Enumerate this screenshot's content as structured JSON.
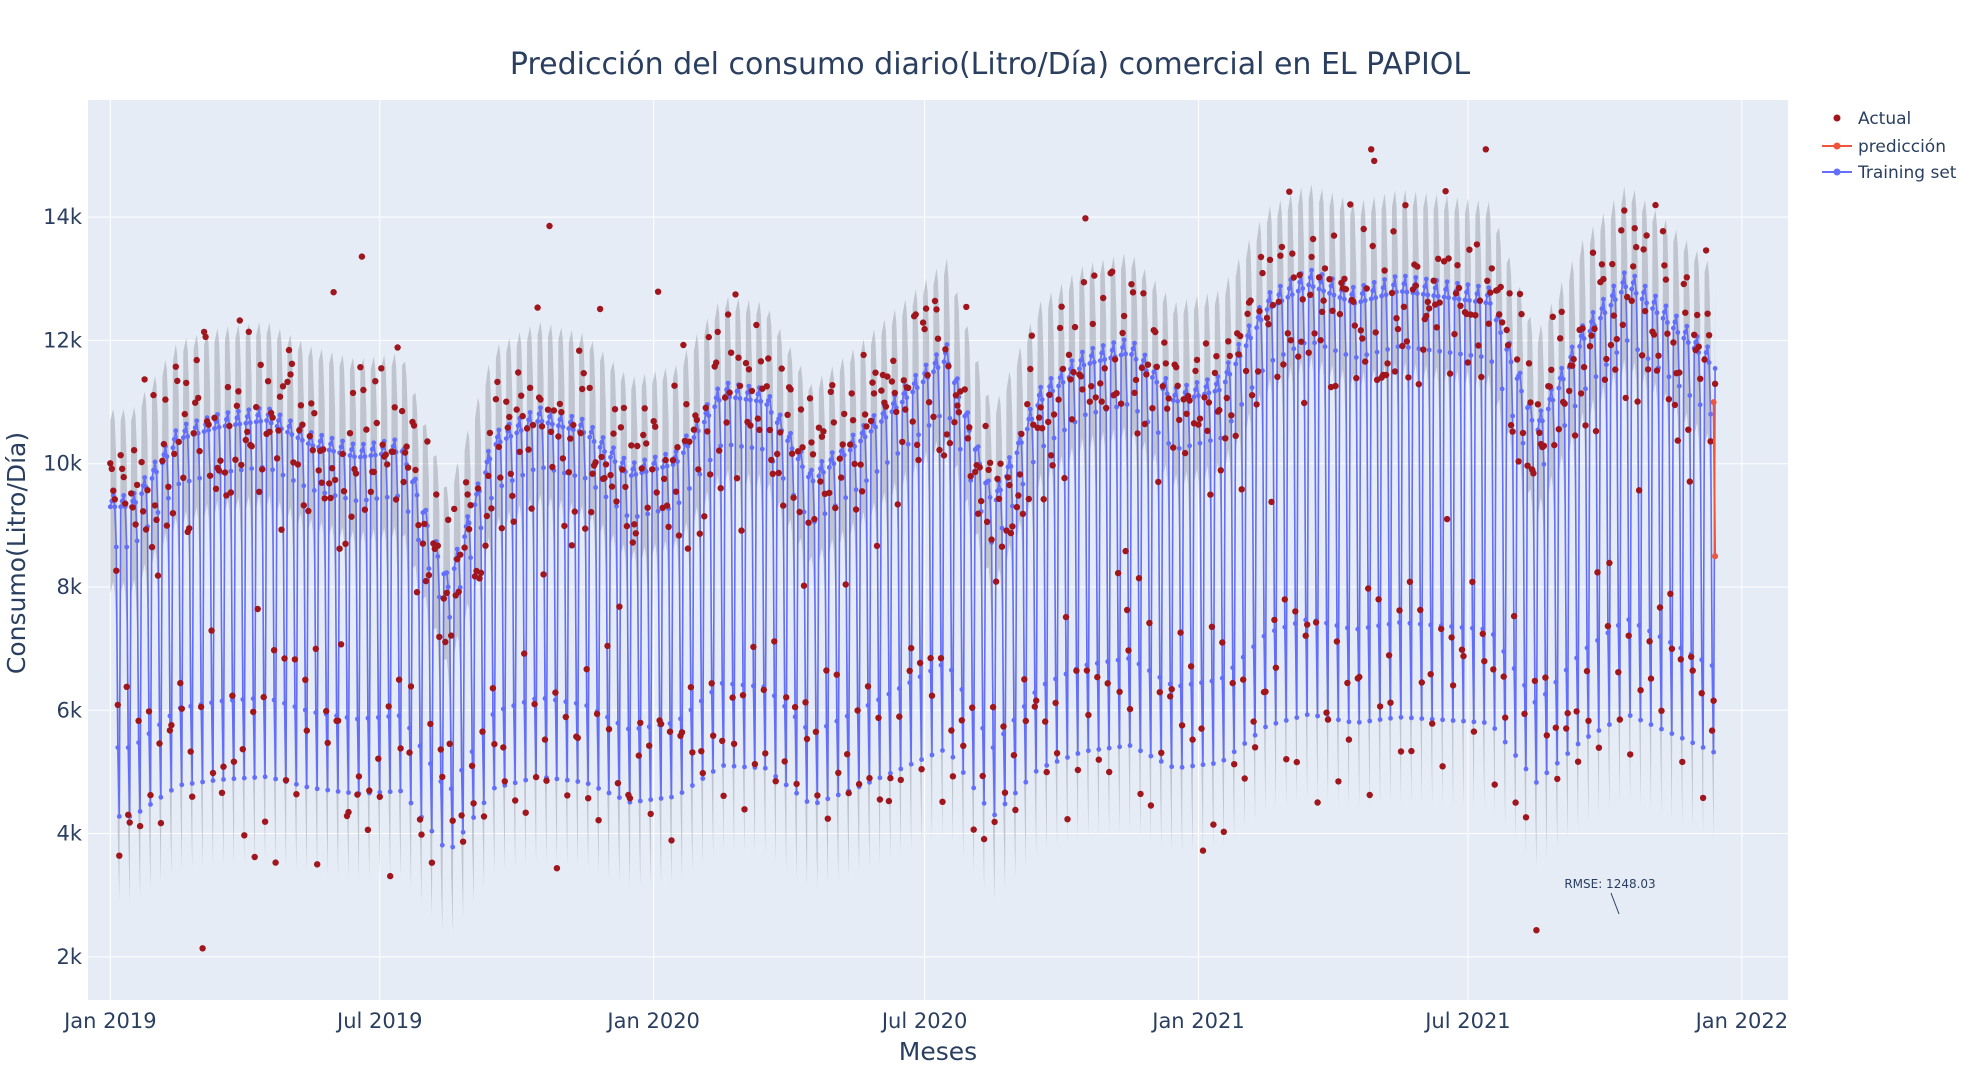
{
  "chart_data": {
    "type": "line",
    "title": "Predicción del consumo diario(Litro/Día) comercial en EL PAPIOL",
    "xlabel": "Meses",
    "ylabel": "Consumo(Litro/Día)",
    "x_range": [
      "2018-12-17",
      "2022-02-01"
    ],
    "y_range": [
      1300,
      15900
    ],
    "x_ticks": [
      {
        "date": "2019-01-01",
        "label": "Jan 2019"
      },
      {
        "date": "2019-07-01",
        "label": "Jul 2019"
      },
      {
        "date": "2020-01-01",
        "label": "Jan 2020"
      },
      {
        "date": "2020-07-01",
        "label": "Jul 2020"
      },
      {
        "date": "2021-01-01",
        "label": "Jan 2021"
      },
      {
        "date": "2021-07-01",
        "label": "Jul 2021"
      },
      {
        "date": "2022-01-01",
        "label": "Jan 2022"
      }
    ],
    "y_ticks": [
      {
        "value": 2000,
        "label": "2k"
      },
      {
        "value": 4000,
        "label": "4k"
      },
      {
        "value": 6000,
        "label": "6k"
      },
      {
        "value": 8000,
        "label": "8k"
      },
      {
        "value": 10000,
        "label": "10k"
      },
      {
        "value": 12000,
        "label": "12k"
      },
      {
        "value": 14000,
        "label": "14k"
      }
    ],
    "date_range": [
      "2019-01-01",
      "2021-12-14"
    ],
    "legend_position": "top-right",
    "grid": true,
    "series": [
      {
        "name": "Actual",
        "mode": "markers",
        "color": "#a0161c",
        "description": "daily observed consumption; weekly pattern, weekday ~10-13k, weekends ~5-9k"
      },
      {
        "name": "predicción",
        "mode": "lines+markers",
        "color": "#ef553b",
        "dates": [
          "2021-12-13",
          "2021-12-14"
        ],
        "values": [
          11000,
          8500
        ]
      },
      {
        "name": "Training set",
        "mode": "lines+markers",
        "color": "#636efa",
        "description": "fitted weekly-seasonal model with grey uncertainty band (±1400)"
      }
    ],
    "weekly_profile": [
      1.0,
      1.01,
      1.02,
      1.0,
      0.93,
      0.58,
      0.46
    ],
    "level_by_month": [
      {
        "date": "2019-01-01",
        "level": 9300
      },
      {
        "date": "2019-02-01",
        "level": 10400
      },
      {
        "date": "2019-03-01",
        "level": 10600
      },
      {
        "date": "2019-04-01",
        "level": 10700
      },
      {
        "date": "2019-05-01",
        "level": 10300
      },
      {
        "date": "2019-06-01",
        "level": 10100
      },
      {
        "date": "2019-07-01",
        "level": 10200
      },
      {
        "date": "2019-08-01",
        "level": 8000
      },
      {
        "date": "2019-09-01",
        "level": 10300
      },
      {
        "date": "2019-10-01",
        "level": 10700
      },
      {
        "date": "2019-11-01",
        "level": 10500
      },
      {
        "date": "2019-12-01",
        "level": 9800
      },
      {
        "date": "2020-01-01",
        "level": 10000
      },
      {
        "date": "2020-02-01",
        "level": 11100
      },
      {
        "date": "2020-03-01",
        "level": 11000
      },
      {
        "date": "2020-04-01",
        "level": 9700
      },
      {
        "date": "2020-05-01",
        "level": 10300
      },
      {
        "date": "2020-06-01",
        "level": 11000
      },
      {
        "date": "2020-07-01",
        "level": 11700
      },
      {
        "date": "2020-08-01",
        "level": 9300
      },
      {
        "date": "2020-09-01",
        "level": 11000
      },
      {
        "date": "2020-10-01",
        "level": 11600
      },
      {
        "date": "2020-11-01",
        "level": 11800
      },
      {
        "date": "2020-12-01",
        "level": 11000
      },
      {
        "date": "2021-01-01",
        "level": 11200
      },
      {
        "date": "2021-02-01",
        "level": 12500
      },
      {
        "date": "2021-03-01",
        "level": 12900
      },
      {
        "date": "2021-04-01",
        "level": 12600
      },
      {
        "date": "2021-05-01",
        "level": 12800
      },
      {
        "date": "2021-06-01",
        "level": 12700
      },
      {
        "date": "2021-07-01",
        "level": 12600
      },
      {
        "date": "2021-08-01",
        "level": 10500
      },
      {
        "date": "2021-09-01",
        "level": 12000
      },
      {
        "date": "2021-10-01",
        "level": 12900
      },
      {
        "date": "2021-11-01",
        "level": 12200
      },
      {
        "date": "2021-12-01",
        "level": 11500
      }
    ],
    "annotation": "RMSE: 1248.03"
  },
  "colors": {
    "plot_bg": "#e5ecf6",
    "grid": "#ffffff",
    "band": "#a0a4ad",
    "actual": "#a0161c",
    "prediction": "#ef553b",
    "training": "#636efa"
  }
}
